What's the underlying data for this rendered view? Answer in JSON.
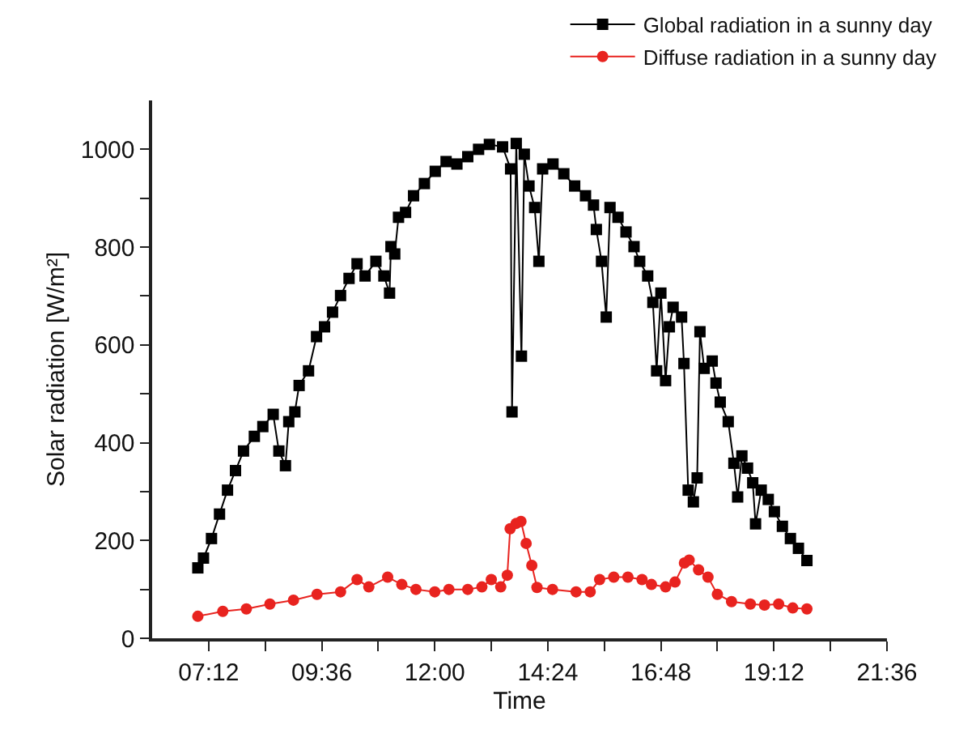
{
  "chart_data": {
    "type": "line",
    "xlabel": "Time",
    "ylabel": "Solar radiation [W/m²]",
    "xlim": [
      6.0,
      21.6
    ],
    "ylim": [
      0,
      1100
    ],
    "xticks": [
      {
        "value": 7.2,
        "label": "07:12"
      },
      {
        "value": 8.4,
        "label": null
      },
      {
        "value": 9.6,
        "label": "09:36"
      },
      {
        "value": 10.8,
        "label": null
      },
      {
        "value": 12,
        "label": "12:00"
      },
      {
        "value": 13.2,
        "label": null
      },
      {
        "value": 14.4,
        "label": "14:24"
      },
      {
        "value": 15.6,
        "label": null
      },
      {
        "value": 16.8,
        "label": "16:48"
      },
      {
        "value": 18.0,
        "label": null
      },
      {
        "value": 19.2,
        "label": "19:12"
      },
      {
        "value": 20.4,
        "label": null
      },
      {
        "value": 21.6,
        "label": "21:36"
      }
    ],
    "yticks": [
      0,
      {
        "value": 100,
        "label": null
      },
      200,
      {
        "value": 300,
        "label": null
      },
      400,
      {
        "value": 500,
        "label": null
      },
      600,
      {
        "value": 700,
        "label": null
      },
      800,
      {
        "value": 900,
        "label": null
      },
      1000
    ],
    "legend": "top right",
    "line_style": "solid",
    "series": [
      {
        "name": "Global radiation in a sunny day",
        "color": "#000000",
        "marker": "square",
        "x": [
          6.97,
          7.09,
          7.26,
          7.43,
          7.6,
          7.77,
          7.94,
          8.17,
          8.35,
          8.57,
          8.69,
          8.83,
          8.9,
          9.03,
          9.12,
          9.32,
          9.49,
          9.66,
          9.83,
          10.0,
          10.18,
          10.35,
          10.52,
          10.75,
          10.92,
          11.04,
          11.07,
          11.15,
          11.23,
          11.38,
          11.55,
          11.78,
          12.01,
          12.24,
          12.47,
          12.7,
          12.93,
          13.16,
          13.44,
          13.61,
          13.64,
          13.73,
          13.84,
          13.9,
          14.0,
          14.12,
          14.21,
          14.29,
          14.51,
          14.74,
          14.97,
          15.2,
          15.37,
          15.43,
          15.54,
          15.64,
          15.72,
          15.89,
          16.06,
          16.23,
          16.35,
          16.52,
          16.63,
          16.71,
          16.8,
          16.9,
          16.98,
          17.06,
          17.24,
          17.29,
          17.38,
          17.49,
          17.57,
          17.63,
          17.72,
          17.89,
          17.97,
          18.06,
          18.23,
          18.35,
          18.43,
          18.52,
          18.64,
          18.75,
          18.81,
          18.93,
          19.08,
          19.21,
          19.38,
          19.55,
          19.72,
          19.9
        ],
        "values": [
          144,
          164,
          204,
          254,
          303,
          343,
          383,
          413,
          433,
          458,
          383,
          353,
          443,
          463,
          517,
          547,
          617,
          637,
          667,
          701,
          736,
          766,
          741,
          771,
          741,
          706,
          801,
          786,
          861,
          871,
          905,
          930,
          955,
          975,
          970,
          985,
          1000,
          1010,
          1005,
          960,
          463,
          1012,
          577,
          990,
          925,
          881,
          771,
          960,
          970,
          950,
          925,
          905,
          886,
          836,
          771,
          657,
          881,
          861,
          831,
          801,
          771,
          741,
          687,
          547,
          706,
          527,
          637,
          677,
          657,
          562,
          303,
          279,
          328,
          627,
          552,
          567,
          522,
          483,
          443,
          358,
          289,
          373,
          348,
          318,
          234,
          303,
          284,
          259,
          229,
          204,
          184,
          159
        ]
      },
      {
        "name": "Diffuse radiation in a sunny day",
        "color": "#e8231f",
        "marker": "circle",
        "x": [
          6.97,
          7.5,
          8.0,
          8.5,
          9.0,
          9.5,
          10.0,
          10.35,
          10.6,
          11.0,
          11.3,
          11.6,
          12.0,
          12.3,
          12.7,
          13.0,
          13.2,
          13.4,
          13.54,
          13.6,
          13.73,
          13.83,
          13.94,
          14.06,
          14.17,
          14.5,
          15.0,
          15.3,
          15.5,
          15.8,
          16.1,
          16.4,
          16.6,
          16.9,
          17.1,
          17.3,
          17.4,
          17.6,
          17.8,
          18.0,
          18.3,
          18.7,
          19.0,
          19.3,
          19.6,
          19.9
        ],
        "values": [
          45,
          55,
          60,
          70,
          78,
          90,
          95,
          120,
          105,
          125,
          110,
          100,
          95,
          100,
          100,
          105,
          120,
          105,
          129,
          224,
          235,
          239,
          194,
          149,
          104,
          100,
          95,
          95,
          120,
          125,
          125,
          120,
          110,
          105,
          115,
          154,
          160,
          140,
          125,
          90,
          75,
          70,
          68,
          70,
          62,
          60
        ]
      }
    ]
  }
}
